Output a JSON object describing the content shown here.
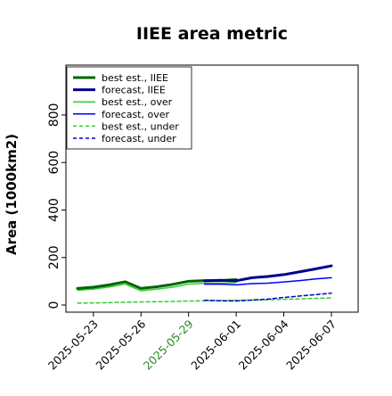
{
  "chart_data": {
    "type": "line",
    "title": "IIEE area metric",
    "xlabel": "",
    "ylabel": "Area (1000km2)",
    "x": [
      "2025-05-22",
      "2025-05-23",
      "2025-05-24",
      "2025-05-25",
      "2025-05-26",
      "2025-05-27",
      "2025-05-28",
      "2025-05-29",
      "2025-05-30",
      "2025-05-31",
      "2025-06-01",
      "2025-06-02",
      "2025-06-03",
      "2025-06-04",
      "2025-06-05",
      "2025-06-06",
      "2025-06-07"
    ],
    "xticks": [
      "2025-05-23",
      "2025-05-26",
      "2025-05-29",
      "2025-06-01",
      "2025-06-04",
      "2025-06-07"
    ],
    "highlighted_xtick": "2025-05-29",
    "highlight_color": "#228b22",
    "yticks": [
      0,
      200,
      400,
      600,
      800
    ],
    "ylim": [
      -30,
      1010
    ],
    "grid": false,
    "legend_position": "top-left",
    "series": [
      {
        "name": "best est., IIEE",
        "color": "#006400",
        "style": "solid",
        "width": 3,
        "values": [
          70,
          75,
          85,
          98,
          70,
          77,
          87,
          100,
          103,
          103,
          107,
          null,
          null,
          null,
          null,
          null,
          null
        ]
      },
      {
        "name": "forecast, IIEE",
        "color": "#00008b",
        "style": "solid",
        "width": 3,
        "values": [
          null,
          null,
          null,
          null,
          null,
          null,
          null,
          null,
          102,
          104,
          102,
          115,
          120,
          128,
          140,
          152,
          165
        ]
      },
      {
        "name": "best est., over",
        "color": "#32cd32",
        "style": "solid",
        "width": 1.5,
        "values": [
          62,
          67,
          76,
          88,
          60,
          67,
          75,
          88,
          92,
          92,
          95,
          null,
          null,
          null,
          null,
          null,
          null
        ]
      },
      {
        "name": "forecast, over",
        "color": "#0000ff",
        "style": "solid",
        "width": 1.5,
        "values": [
          null,
          null,
          null,
          null,
          null,
          null,
          null,
          null,
          88,
          88,
          85,
          90,
          92,
          97,
          103,
          110,
          115
        ]
      },
      {
        "name": "best est., under",
        "color": "#32cd32",
        "style": "dashed",
        "width": 1.5,
        "values": [
          8,
          9,
          10,
          12,
          13,
          14,
          15,
          17,
          18,
          19,
          20,
          21,
          22,
          24,
          26,
          28,
          30
        ]
      },
      {
        "name": "forecast, under",
        "color": "#0000cd",
        "style": "dashed",
        "width": 1.5,
        "values": [
          null,
          null,
          null,
          null,
          null,
          null,
          null,
          null,
          20,
          18,
          17,
          21,
          25,
          32,
          38,
          44,
          50
        ]
      }
    ]
  }
}
